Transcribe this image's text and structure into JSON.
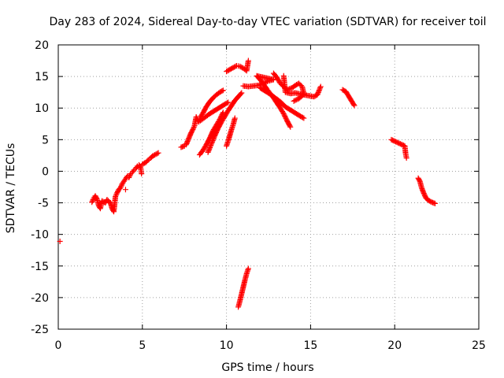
{
  "chart_data": {
    "type": "scatter",
    "title": "Day 283 of 2024, Sidereal Day-to-day VTEC variation (SDTVAR) for receiver toil",
    "xlabel": "GPS time / hours",
    "ylabel": "SDTVAR / TECUs",
    "xlim": [
      0,
      25
    ],
    "ylim": [
      -25,
      20
    ],
    "xticks": [
      0,
      5,
      10,
      15,
      20,
      25
    ],
    "yticks": [
      -25,
      -20,
      -15,
      -10,
      -5,
      0,
      5,
      10,
      15,
      20
    ],
    "grid": true,
    "marker": "+",
    "color": "#ff0000",
    "series": [
      {
        "name": "",
        "points": [
          [
            0.1,
            -11.1
          ],
          [
            2.0,
            -4.9
          ],
          [
            2.1,
            -4.3
          ],
          [
            2.2,
            -3.9
          ],
          [
            2.3,
            -4.4
          ],
          [
            2.4,
            -5.4
          ],
          [
            2.5,
            -5.9
          ],
          [
            2.6,
            -4.7
          ],
          [
            2.8,
            -5.0
          ],
          [
            2.9,
            -4.5
          ],
          [
            3.1,
            -5.0
          ],
          [
            3.2,
            -5.9
          ],
          [
            3.3,
            -6.4
          ],
          [
            3.4,
            -4.0
          ],
          [
            3.5,
            -3.4
          ],
          [
            3.6,
            -2.9
          ],
          [
            3.7,
            -2.6
          ],
          [
            3.8,
            -2.0
          ],
          [
            3.9,
            -1.6
          ],
          [
            4.0,
            -1.2
          ],
          [
            4.1,
            -0.8
          ],
          [
            4.2,
            -1.0
          ],
          [
            4.3,
            -0.4
          ],
          [
            4.4,
            -0.2
          ],
          [
            4.5,
            0.2
          ],
          [
            4.6,
            0.4
          ],
          [
            4.7,
            0.8
          ],
          [
            4.8,
            1.0
          ],
          [
            4.9,
            0.5
          ],
          [
            4.95,
            -0.4
          ],
          [
            4.0,
            -2.9
          ],
          [
            5.0,
            1.1
          ],
          [
            5.2,
            1.4
          ],
          [
            5.4,
            1.9
          ],
          [
            5.5,
            2.1
          ],
          [
            5.6,
            2.4
          ],
          [
            5.95,
            2.9
          ],
          [
            7.3,
            3.8
          ],
          [
            7.5,
            4.0
          ],
          [
            7.6,
            4.2
          ],
          [
            7.9,
            6.1
          ],
          [
            8.0,
            6.6
          ],
          [
            8.1,
            7.2
          ],
          [
            8.2,
            8.6
          ],
          [
            8.35,
            7.8
          ],
          [
            8.45,
            8.6
          ],
          [
            8.6,
            9.2
          ],
          [
            8.8,
            10.2
          ],
          [
            9.0,
            11.0
          ],
          [
            9.2,
            11.6
          ],
          [
            9.4,
            12.1
          ],
          [
            9.6,
            12.5
          ],
          [
            9.8,
            12.8
          ],
          [
            8.45,
            8.0
          ],
          [
            8.6,
            8.3
          ],
          [
            8.8,
            8.7
          ],
          [
            9.0,
            9.1
          ],
          [
            9.3,
            9.6
          ],
          [
            9.6,
            10.1
          ],
          [
            9.9,
            10.6
          ],
          [
            10.1,
            10.9
          ],
          [
            8.4,
            2.6
          ],
          [
            8.6,
            3.3
          ],
          [
            8.8,
            4.2
          ],
          [
            9.0,
            5.2
          ],
          [
            9.2,
            6.4
          ],
          [
            9.4,
            7.3
          ],
          [
            9.6,
            8.2
          ],
          [
            9.8,
            9.3
          ],
          [
            8.9,
            3.0
          ],
          [
            9.1,
            4.3
          ],
          [
            9.3,
            5.6
          ],
          [
            9.5,
            6.8
          ],
          [
            9.7,
            7.8
          ],
          [
            9.9,
            8.7
          ],
          [
            10.1,
            9.6
          ],
          [
            10.3,
            10.4
          ],
          [
            10.5,
            11.2
          ],
          [
            10.7,
            11.8
          ],
          [
            10.9,
            12.4
          ],
          [
            10.0,
            4.0
          ],
          [
            10.1,
            4.8
          ],
          [
            10.2,
            5.7
          ],
          [
            10.3,
            6.6
          ],
          [
            10.4,
            7.4
          ],
          [
            10.5,
            8.4
          ],
          [
            10.7,
            -21.5
          ],
          [
            10.8,
            -20.5
          ],
          [
            10.9,
            -19.4
          ],
          [
            11.0,
            -18.3
          ],
          [
            11.1,
            -17.2
          ],
          [
            11.2,
            -16.2
          ],
          [
            11.3,
            -15.4
          ],
          [
            10.0,
            15.8
          ],
          [
            10.2,
            16.1
          ],
          [
            10.4,
            16.4
          ],
          [
            10.6,
            16.7
          ],
          [
            10.8,
            16.6
          ],
          [
            11.0,
            16.3
          ],
          [
            11.2,
            15.9
          ],
          [
            11.3,
            17.5
          ],
          [
            11.0,
            13.5
          ],
          [
            11.3,
            13.4
          ],
          [
            11.6,
            13.5
          ],
          [
            11.9,
            13.6
          ],
          [
            12.2,
            13.9
          ],
          [
            12.5,
            14.3
          ],
          [
            12.8,
            14.5
          ],
          [
            11.8,
            15.1
          ],
          [
            12.0,
            14.5
          ],
          [
            12.2,
            13.8
          ],
          [
            12.4,
            13.0
          ],
          [
            12.6,
            12.3
          ],
          [
            12.8,
            11.6
          ],
          [
            13.0,
            10.8
          ],
          [
            13.2,
            10.0
          ],
          [
            13.4,
            9.1
          ],
          [
            13.6,
            8.0
          ],
          [
            13.8,
            7.0
          ],
          [
            12.0,
            13.2
          ],
          [
            12.3,
            12.7
          ],
          [
            12.6,
            12.2
          ],
          [
            12.9,
            11.6
          ],
          [
            13.2,
            11.0
          ],
          [
            13.5,
            10.2
          ],
          [
            13.8,
            9.7
          ],
          [
            14.1,
            9.2
          ],
          [
            14.4,
            8.7
          ],
          [
            14.6,
            8.4
          ],
          [
            12.8,
            15.5
          ],
          [
            13.0,
            14.8
          ],
          [
            13.2,
            13.9
          ],
          [
            13.4,
            13.4
          ],
          [
            13.6,
            12.9
          ],
          [
            13.9,
            13.2
          ],
          [
            14.1,
            13.6
          ],
          [
            14.3,
            13.9
          ],
          [
            14.5,
            13.4
          ],
          [
            14.6,
            12.2
          ],
          [
            14.3,
            11.5
          ],
          [
            14.0,
            11.1
          ],
          [
            13.4,
            15.1
          ],
          [
            13.5,
            12.5
          ],
          [
            13.8,
            12.3
          ],
          [
            14.1,
            12.4
          ],
          [
            14.4,
            12.2
          ],
          [
            15.2,
            11.8
          ],
          [
            15.4,
            12.1
          ],
          [
            15.6,
            13.4
          ],
          [
            16.9,
            12.9
          ],
          [
            17.1,
            12.6
          ],
          [
            17.6,
            10.4
          ],
          [
            19.8,
            5.0
          ],
          [
            20.6,
            4.0
          ],
          [
            20.65,
            2.8
          ],
          [
            20.7,
            2.1
          ],
          [
            21.4,
            -1.1
          ],
          [
            21.5,
            -1.6
          ],
          [
            21.6,
            -2.6
          ],
          [
            21.7,
            -3.3
          ],
          [
            21.85,
            -4.2
          ],
          [
            22.0,
            -4.6
          ],
          [
            22.2,
            -4.9
          ],
          [
            22.4,
            -5.1
          ]
        ]
      }
    ]
  }
}
